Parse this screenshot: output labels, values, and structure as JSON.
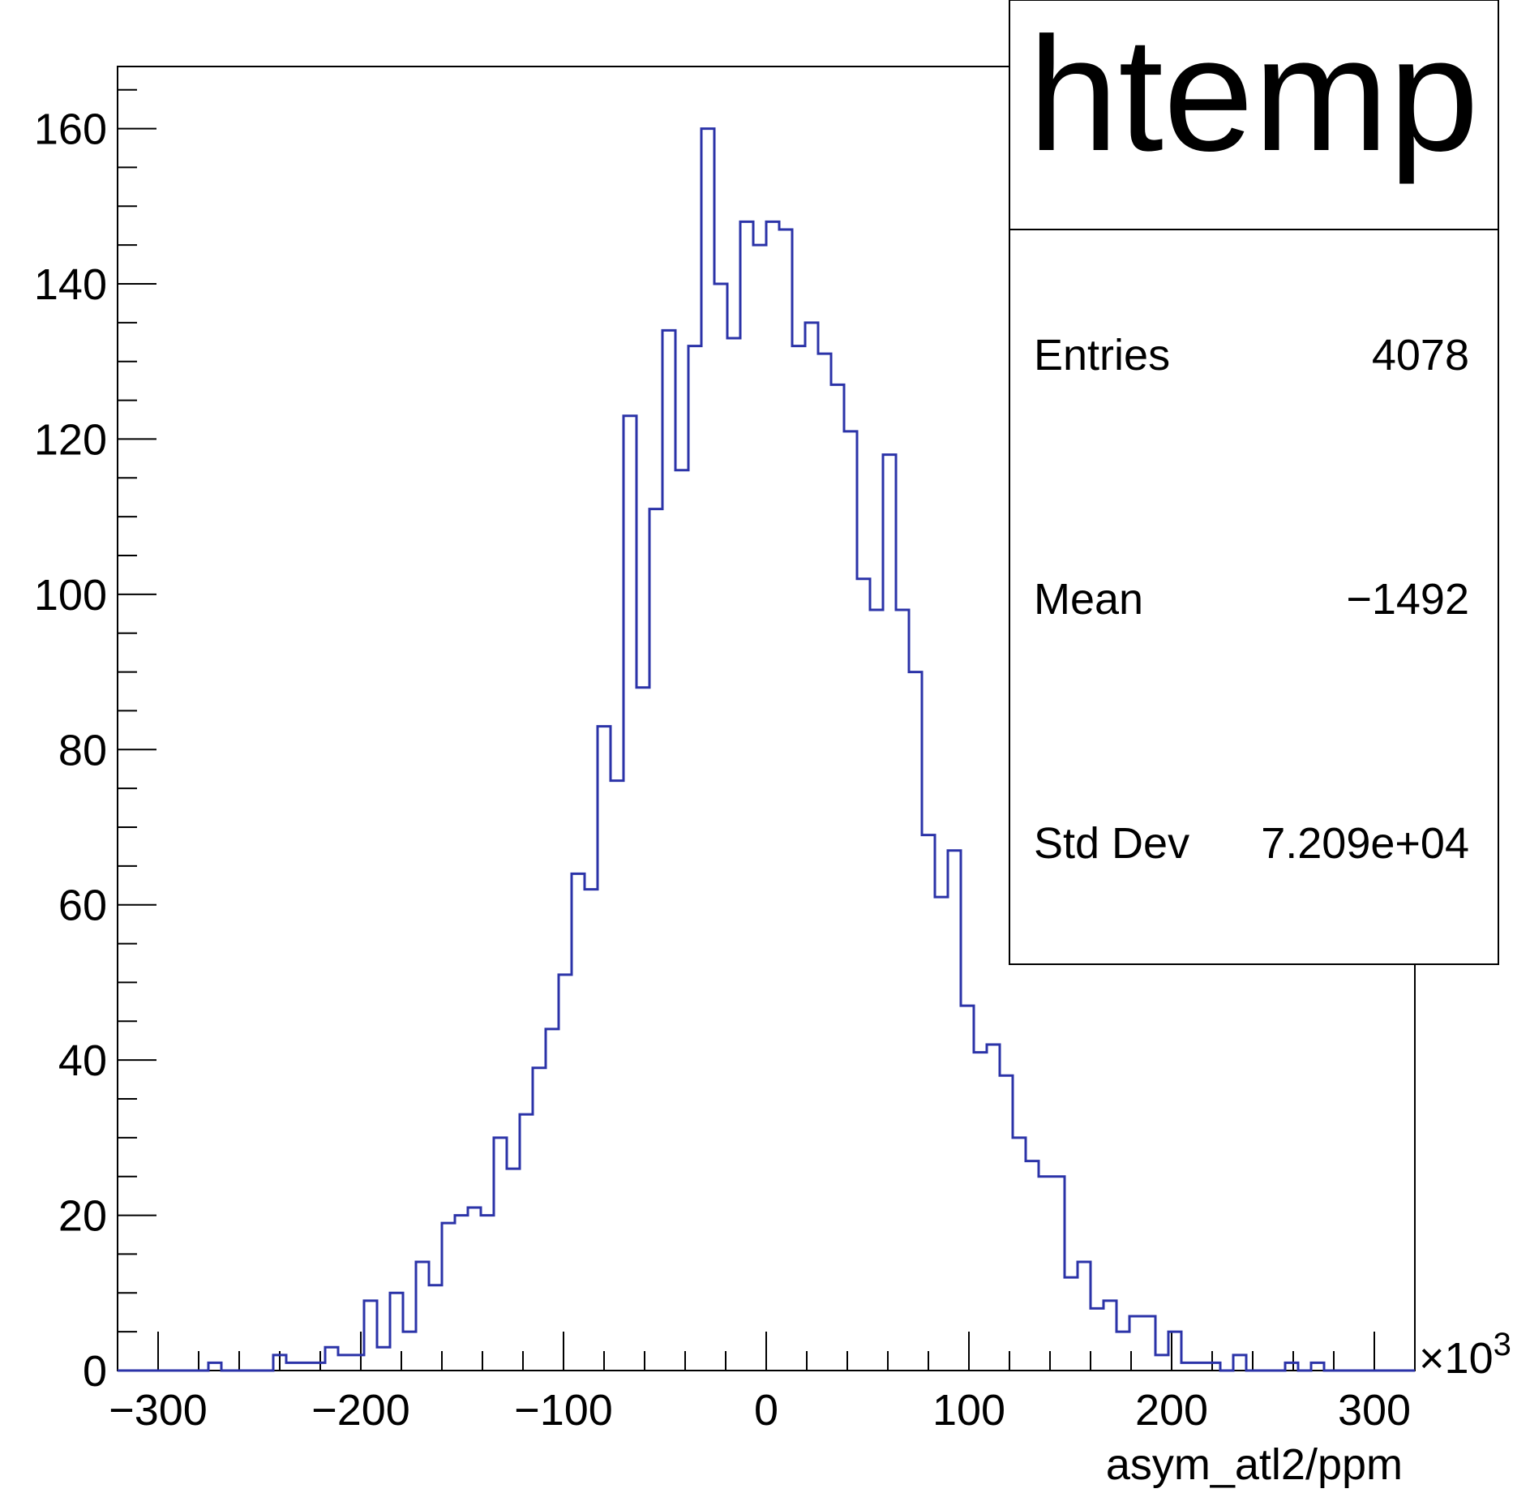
{
  "chart_data": {
    "type": "bar",
    "title": "htemp",
    "xlabel": "asym_atl2/ppm",
    "ylabel": "",
    "x_multiplier": "×10",
    "x_multiplier_exp": "3",
    "xlim": [
      -320,
      320
    ],
    "ylim": [
      0,
      168
    ],
    "x_ticks": [
      -300,
      -200,
      -100,
      0,
      100,
      200,
      300
    ],
    "x_tick_labels": [
      "−300",
      "−200",
      "−100",
      "0",
      "100",
      "200",
      "300"
    ],
    "y_ticks": [
      0,
      20,
      40,
      60,
      80,
      100,
      120,
      140,
      160
    ],
    "y_tick_labels": [
      "0",
      "20",
      "40",
      "60",
      "80",
      "100",
      "120",
      "140",
      "160"
    ],
    "bin_edges_start": -320,
    "bin_width": 6.4,
    "counts": [
      0,
      0,
      0,
      0,
      0,
      0,
      0,
      1,
      0,
      0,
      0,
      0,
      2,
      1,
      1,
      1,
      3,
      2,
      2,
      9,
      3,
      10,
      5,
      14,
      11,
      19,
      20,
      21,
      20,
      30,
      26,
      33,
      39,
      44,
      51,
      64,
      62,
      83,
      76,
      123,
      88,
      111,
      134,
      116,
      132,
      160,
      140,
      133,
      148,
      145,
      148,
      147,
      132,
      135,
      131,
      127,
      121,
      102,
      98,
      118,
      98,
      90,
      69,
      61,
      67,
      47,
      41,
      42,
      38,
      30,
      27,
      25,
      25,
      12,
      14,
      8,
      9,
      5,
      7,
      7,
      2,
      5,
      1,
      1,
      1,
      0,
      2,
      0,
      0,
      0,
      1,
      0,
      1,
      0,
      0,
      0,
      0,
      0,
      0,
      0
    ],
    "line_color": "#2b33a8",
    "grid": false,
    "stats_box": {
      "title": "htemp",
      "entries_label": "Entries",
      "entries_value": "4078",
      "mean_label": "Mean",
      "mean_value": "−1492",
      "stddev_label": "Std Dev",
      "stddev_value": "7.209e+04"
    }
  }
}
